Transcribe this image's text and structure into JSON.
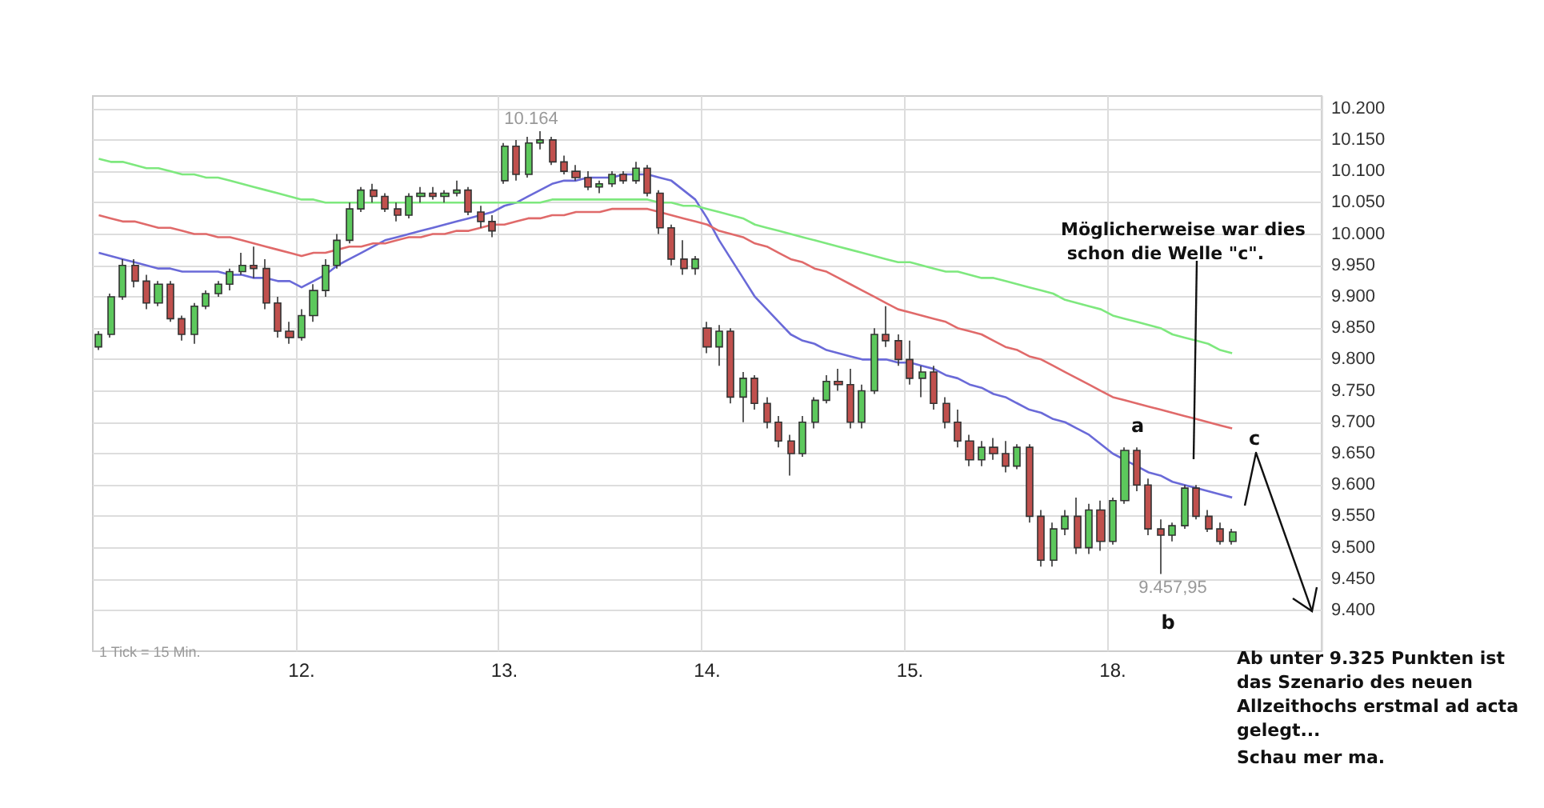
{
  "chart_data": {
    "type": "candlestick",
    "categories": [
      null,
      null,
      null,
      null,
      null,
      null,
      null,
      null,
      null,
      null,
      null,
      null,
      null,
      null,
      null,
      null,
      null,
      "12.",
      null,
      null,
      null,
      null,
      null,
      null,
      null,
      null,
      null,
      null,
      null,
      null,
      null,
      null,
      null,
      null,
      "13.",
      null,
      null,
      null,
      null,
      null,
      null,
      null,
      null,
      null,
      null,
      null,
      null,
      null,
      null,
      null,
      null,
      "14.",
      null,
      null,
      null,
      null,
      null,
      null,
      null,
      null,
      null,
      null,
      null,
      null,
      null,
      null,
      null,
      null,
      "15.",
      null,
      null,
      null,
      null,
      null,
      null,
      null,
      null,
      null,
      null,
      null,
      null,
      null,
      null,
      null,
      null,
      "18.",
      null,
      null,
      null,
      null,
      null,
      null,
      null,
      null,
      null,
      null,
      null,
      null,
      null,
      null,
      null,
      null,
      null
    ],
    "ylim": [
      9335,
      10220
    ],
    "yticks": [
      {
        "value": 9400,
        "label": "9.400"
      },
      {
        "value": 9450,
        "label": "9.450"
      },
      {
        "value": 9500,
        "label": "9.500"
      },
      {
        "value": 9550,
        "label": "9.550"
      },
      {
        "value": 9600,
        "label": "9.600"
      },
      {
        "value": 9650,
        "label": "9.650"
      },
      {
        "value": 9700,
        "label": "9.700"
      },
      {
        "value": 9750,
        "label": "9.750"
      },
      {
        "value": 9800,
        "label": "9.800"
      },
      {
        "value": 9850,
        "label": "9.850"
      },
      {
        "value": 9900,
        "label": "9.900"
      },
      {
        "value": 9950,
        "label": "9.950"
      },
      {
        "value": 10000,
        "label": "10.000"
      },
      {
        "value": 10050,
        "label": "10.050"
      },
      {
        "value": 10100,
        "label": "10.100"
      },
      {
        "value": 10150,
        "label": "10.150"
      },
      {
        "value": 10200,
        "label": "10.200"
      }
    ],
    "grid": true,
    "series": [
      {
        "type": "line",
        "color": "#6a6ad8",
        "values": [
          9970,
          9965,
          9960,
          9955,
          9950,
          9945,
          9945,
          9940,
          9940,
          9940,
          9940,
          9935,
          9935,
          9930,
          9930,
          9925,
          9925,
          9915,
          9925,
          9935,
          9950,
          9960,
          9970,
          9980,
          9990,
          9995,
          10000,
          10005,
          10010,
          10015,
          10020,
          10025,
          10030,
          10035,
          10045,
          10050,
          10060,
          10070,
          10080,
          10085,
          10085,
          10090,
          10090,
          10090,
          10095,
          10095,
          10095,
          10090,
          10085,
          10070,
          10055,
          10025,
          9990,
          9960,
          9930,
          9900,
          9880,
          9860,
          9840,
          9830,
          9825,
          9815,
          9810,
          9805,
          9800,
          9800,
          9800,
          9795,
          9795,
          9790,
          9785,
          9775,
          9770,
          9760,
          9755,
          9745,
          9740,
          9730,
          9720,
          9715,
          9705,
          9700,
          9690,
          9680,
          9665,
          9650,
          9640,
          9630,
          9620,
          9615,
          9605,
          9600,
          9595,
          9590,
          9585,
          9580,
          null,
          null,
          null,
          null,
          null,
          null,
          null
        ]
      },
      {
        "type": "line",
        "color": "#e06a6a",
        "values": [
          10030,
          10025,
          10020,
          10020,
          10015,
          10010,
          10010,
          10005,
          10000,
          10000,
          9995,
          9995,
          9990,
          9985,
          9980,
          9975,
          9970,
          9965,
          9970,
          9970,
          9975,
          9980,
          9980,
          9985,
          9985,
          9990,
          9995,
          9995,
          10000,
          10000,
          10005,
          10005,
          10010,
          10015,
          10015,
          10020,
          10025,
          10025,
          10030,
          10030,
          10035,
          10035,
          10035,
          10040,
          10040,
          10040,
          10040,
          10035,
          10030,
          10025,
          10020,
          10015,
          10005,
          10000,
          9995,
          9985,
          9980,
          9970,
          9960,
          9955,
          9945,
          9940,
          9930,
          9920,
          9910,
          9900,
          9890,
          9880,
          9875,
          9870,
          9865,
          9860,
          9850,
          9845,
          9840,
          9830,
          9820,
          9815,
          9805,
          9800,
          9790,
          9780,
          9770,
          9760,
          9750,
          9740,
          9735,
          9730,
          9725,
          9720,
          9715,
          9710,
          9705,
          9700,
          9695,
          9690,
          null,
          null,
          null,
          null,
          null,
          null,
          null
        ]
      },
      {
        "type": "line",
        "color": "#7ee87e",
        "values": [
          10120,
          10115,
          10115,
          10110,
          10105,
          10105,
          10100,
          10095,
          10095,
          10090,
          10090,
          10085,
          10080,
          10075,
          10070,
          10065,
          10060,
          10055,
          10055,
          10050,
          10050,
          10050,
          10050,
          10050,
          10050,
          10050,
          10050,
          10050,
          10050,
          10050,
          10050,
          10050,
          10050,
          10050,
          10050,
          10050,
          10050,
          10050,
          10055,
          10055,
          10055,
          10055,
          10055,
          10055,
          10055,
          10055,
          10055,
          10050,
          10050,
          10045,
          10045,
          10040,
          10035,
          10030,
          10025,
          10015,
          10010,
          10005,
          10000,
          9995,
          9990,
          9985,
          9980,
          9975,
          9970,
          9965,
          9960,
          9955,
          9955,
          9950,
          9945,
          9940,
          9940,
          9935,
          9930,
          9930,
          9925,
          9920,
          9915,
          9910,
          9905,
          9895,
          9890,
          9885,
          9880,
          9870,
          9865,
          9860,
          9855,
          9850,
          9840,
          9835,
          9830,
          9825,
          9815,
          9810,
          null,
          null,
          null,
          null,
          null,
          null,
          null
        ]
      },
      {
        "ohlc": [
          [
            9820,
            9845,
            9815,
            9840
          ],
          [
            9840,
            9905,
            9835,
            9900
          ],
          [
            9900,
            9960,
            9895,
            9950
          ],
          [
            9950,
            9960,
            9915,
            9925
          ],
          [
            9925,
            9935,
            9880,
            9890
          ],
          [
            9890,
            9925,
            9885,
            9920
          ],
          [
            9920,
            9925,
            9860,
            9865
          ],
          [
            9865,
            9870,
            9830,
            9840
          ],
          [
            9840,
            9890,
            9825,
            9885
          ],
          [
            9885,
            9910,
            9880,
            9905
          ],
          [
            9905,
            9925,
            9900,
            9920
          ],
          [
            9920,
            9945,
            9910,
            9940
          ],
          [
            9940,
            9970,
            9935,
            9950
          ],
          [
            9950,
            9980,
            9930,
            9945
          ],
          [
            9945,
            9960,
            9880,
            9890
          ],
          [
            9890,
            9900,
            9835,
            9845
          ],
          [
            9845,
            9860,
            9825,
            9835
          ],
          [
            9835,
            9880,
            9830,
            9870
          ],
          [
            9870,
            9920,
            9860,
            9910
          ],
          [
            9910,
            9960,
            9900,
            9950
          ],
          [
            9950,
            10000,
            9945,
            9990
          ],
          [
            9990,
            10050,
            9985,
            10040
          ],
          [
            10040,
            10075,
            10035,
            10070
          ],
          [
            10070,
            10080,
            10050,
            10060
          ],
          [
            10060,
            10065,
            10035,
            10040
          ],
          [
            10040,
            10050,
            10020,
            10030
          ],
          [
            10030,
            10065,
            10025,
            10060
          ],
          [
            10060,
            10075,
            10050,
            10065
          ],
          [
            10065,
            10075,
            10055,
            10060
          ],
          [
            10060,
            10070,
            10050,
            10065
          ],
          [
            10065,
            10085,
            10060,
            10070
          ],
          [
            10070,
            10075,
            10030,
            10035
          ],
          [
            10035,
            10045,
            10010,
            10020
          ],
          [
            10020,
            10030,
            9995,
            10005
          ],
          [
            10085,
            10145,
            10080,
            10140
          ],
          [
            10140,
            10150,
            10085,
            10095
          ],
          [
            10095,
            10155,
            10090,
            10145
          ],
          [
            10145,
            10164,
            10135,
            10150
          ],
          [
            10150,
            10155,
            10110,
            10115
          ],
          [
            10115,
            10125,
            10095,
            10100
          ],
          [
            10100,
            10110,
            10085,
            10090
          ],
          [
            10090,
            10100,
            10070,
            10075
          ],
          [
            10075,
            10085,
            10065,
            10080
          ],
          [
            10080,
            10100,
            10075,
            10095
          ],
          [
            10095,
            10100,
            10080,
            10085
          ],
          [
            10085,
            10115,
            10080,
            10105
          ],
          [
            10105,
            10110,
            10060,
            10065
          ],
          [
            10065,
            10070,
            10000,
            10010
          ],
          [
            10010,
            10015,
            9950,
            9960
          ],
          [
            9960,
            9990,
            9935,
            9945
          ],
          [
            9945,
            9965,
            9935,
            9960
          ],
          [
            9850,
            9860,
            9810,
            9820
          ],
          [
            9820,
            9855,
            9790,
            9845
          ],
          [
            9845,
            9850,
            9730,
            9740
          ],
          [
            9740,
            9780,
            9700,
            9770
          ],
          [
            9770,
            9775,
            9720,
            9730
          ],
          [
            9730,
            9740,
            9690,
            9700
          ],
          [
            9700,
            9710,
            9660,
            9670
          ],
          [
            9670,
            9680,
            9615,
            9650
          ],
          [
            9650,
            9710,
            9645,
            9700
          ],
          [
            9700,
            9740,
            9690,
            9735
          ],
          [
            9735,
            9775,
            9730,
            9765
          ],
          [
            9765,
            9785,
            9750,
            9760
          ],
          [
            9760,
            9785,
            9690,
            9700
          ],
          [
            9700,
            9760,
            9690,
            9750
          ],
          [
            9750,
            9850,
            9745,
            9840
          ],
          [
            9840,
            9885,
            9820,
            9830
          ],
          [
            9830,
            9840,
            9790,
            9800
          ],
          [
            9800,
            9830,
            9760,
            9770
          ],
          [
            9770,
            9790,
            9740,
            9780
          ],
          [
            9780,
            9790,
            9720,
            9730
          ],
          [
            9730,
            9740,
            9690,
            9700
          ],
          [
            9700,
            9720,
            9660,
            9670
          ],
          [
            9670,
            9680,
            9630,
            9640
          ],
          [
            9640,
            9670,
            9630,
            9660
          ],
          [
            9660,
            9675,
            9640,
            9650
          ],
          [
            9650,
            9670,
            9620,
            9630
          ],
          [
            9630,
            9665,
            9625,
            9660
          ],
          [
            9660,
            9665,
            9540,
            9550
          ],
          [
            9550,
            9560,
            9470,
            9480
          ],
          [
            9480,
            9540,
            9470,
            9530
          ],
          [
            9530,
            9560,
            9520,
            9550
          ],
          [
            9550,
            9580,
            9490,
            9500
          ],
          [
            9500,
            9570,
            9490,
            9560
          ],
          [
            9560,
            9575,
            9495,
            9510
          ],
          [
            9510,
            9580,
            9505,
            9575
          ],
          [
            9575,
            9660,
            9570,
            9655
          ],
          [
            9655,
            9660,
            9590,
            9600
          ],
          [
            9600,
            9610,
            9520,
            9530
          ],
          [
            9530,
            9545,
            9457.95,
            9520
          ],
          [
            9520,
            9540,
            9510,
            9535
          ],
          [
            9535,
            9600,
            9530,
            9595
          ],
          [
            9595,
            9600,
            9545,
            9550
          ],
          [
            9550,
            9560,
            9525,
            9530
          ],
          [
            9530,
            9540,
            9505,
            9510
          ],
          [
            9510,
            9530,
            9505,
            9525
          ],
          null,
          null,
          null,
          null,
          null,
          null,
          null
        ],
        "colors": [
          "#5cc85c",
          "#5cc85c",
          "#5cc85c",
          "#c0504d",
          "#c0504d",
          "#5cc85c",
          "#c0504d",
          "#c0504d",
          "#5cc85c",
          "#5cc85c",
          "#5cc85c",
          "#5cc85c",
          "#5cc85c",
          "#c0504d",
          "#c0504d",
          "#c0504d",
          "#c0504d",
          "#5cc85c",
          "#5cc85c",
          "#5cc85c",
          "#5cc85c",
          "#5cc85c",
          "#5cc85c",
          "#c0504d",
          "#c0504d",
          "#c0504d",
          "#5cc85c",
          "#5cc85c",
          "#c0504d",
          "#5cc85c",
          "#5cc85c",
          "#c0504d",
          "#c0504d",
          "#c0504d",
          "#5cc85c",
          "#c0504d",
          "#5cc85c",
          "#5cc85c",
          "#c0504d",
          "#c0504d",
          "#c0504d",
          "#c0504d",
          "#5cc85c",
          "#5cc85c",
          "#c0504d",
          "#5cc85c",
          "#c0504d",
          "#c0504d",
          "#c0504d",
          "#c0504d",
          "#5cc85c",
          "#c0504d",
          "#5cc85c",
          "#c0504d",
          "#5cc85c",
          "#c0504d",
          "#c0504d",
          "#c0504d",
          "#c0504d",
          "#5cc85c",
          "#5cc85c",
          "#5cc85c",
          "#c0504d",
          "#c0504d",
          "#5cc85c",
          "#5cc85c",
          "#c0504d",
          "#c0504d",
          "#c0504d",
          "#5cc85c",
          "#c0504d",
          "#c0504d",
          "#c0504d",
          "#c0504d",
          "#5cc85c",
          "#c0504d",
          "#c0504d",
          "#5cc85c",
          "#c0504d",
          "#c0504d",
          "#5cc85c",
          "#5cc85c",
          "#c0504d",
          "#5cc85c",
          "#c0504d",
          "#5cc85c",
          "#5cc85c",
          "#c0504d",
          "#c0504d",
          "#c0504d",
          "#5cc85c",
          "#5cc85c",
          "#c0504d",
          "#c0504d",
          "#c0504d",
          "#5cc85c",
          null,
          null,
          null,
          null,
          null,
          null,
          null
        ]
      }
    ],
    "annotations": [
      "1 Tick = 15 Min.",
      "10.164",
      "9.457,95",
      "a",
      "b",
      "c",
      "Möglicherweise war dies schon die Welle \"c\".",
      "Ab unter 9.325 Punkten ist das Szenario des neuen Allzeithochs erstmal ad acta gelegt...",
      "Schau mer ma."
    ]
  }
}
